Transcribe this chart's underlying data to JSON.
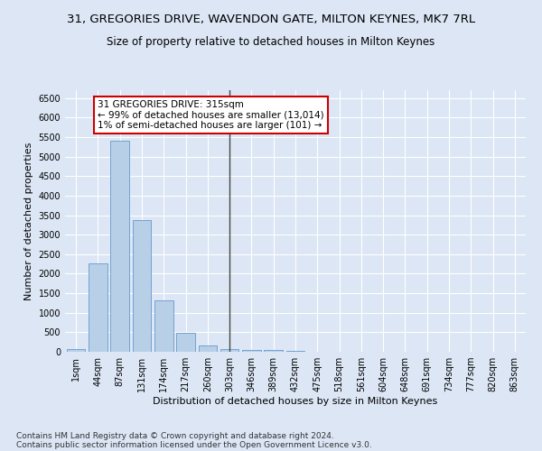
{
  "title": "31, GREGORIES DRIVE, WAVENDON GATE, MILTON KEYNES, MK7 7RL",
  "subtitle": "Size of property relative to detached houses in Milton Keynes",
  "xlabel": "Distribution of detached houses by size in Milton Keynes",
  "ylabel": "Number of detached properties",
  "footer_line1": "Contains HM Land Registry data © Crown copyright and database right 2024.",
  "footer_line2": "Contains public sector information licensed under the Open Government Licence v3.0.",
  "bar_labels": [
    "1sqm",
    "44sqm",
    "87sqm",
    "131sqm",
    "174sqm",
    "217sqm",
    "260sqm",
    "303sqm",
    "346sqm",
    "389sqm",
    "432sqm",
    "475sqm",
    "518sqm",
    "561sqm",
    "604sqm",
    "648sqm",
    "691sqm",
    "734sqm",
    "777sqm",
    "820sqm",
    "863sqm"
  ],
  "bar_values": [
    75,
    2270,
    5400,
    3380,
    1310,
    480,
    160,
    80,
    55,
    35,
    15,
    10,
    8,
    5,
    3,
    2,
    1,
    1,
    0,
    0,
    0
  ],
  "bar_color": "#b8cfe8",
  "bar_edge_color": "#6699cc",
  "highlight_bar_index": 7,
  "highlight_line_color": "#444444",
  "annotation_text": "31 GREGORIES DRIVE: 315sqm\n← 99% of detached houses are smaller (13,014)\n1% of semi-detached houses are larger (101) →",
  "annotation_box_facecolor": "#ffffff",
  "annotation_box_edgecolor": "#cc0000",
  "ylim": [
    0,
    6700
  ],
  "yticks": [
    0,
    500,
    1000,
    1500,
    2000,
    2500,
    3000,
    3500,
    4000,
    4500,
    5000,
    5500,
    6000,
    6500
  ],
  "bg_color": "#dce6f5",
  "plot_bg_color": "#dce6f5",
  "grid_color": "#ffffff",
  "title_fontsize": 9.5,
  "subtitle_fontsize": 8.5,
  "axis_label_fontsize": 8,
  "tick_fontsize": 7,
  "annotation_fontsize": 7.5,
  "footer_fontsize": 6.5
}
